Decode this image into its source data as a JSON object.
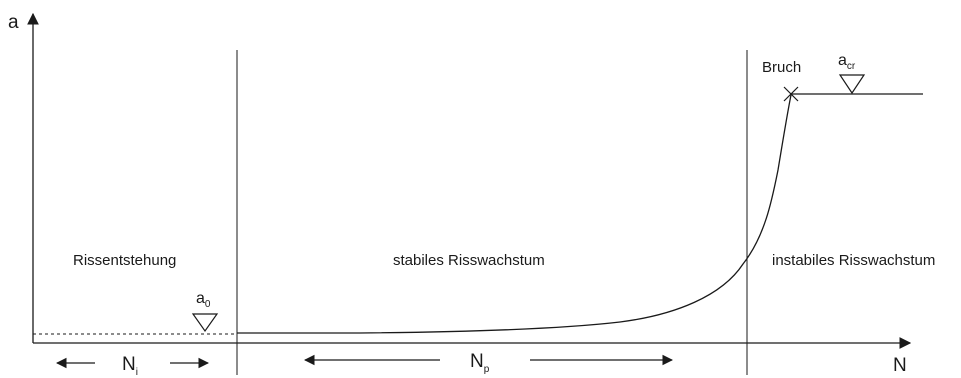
{
  "axes": {
    "y_label": "a",
    "x_label": "N"
  },
  "regions": {
    "initiation": "Rissentstehung",
    "stable": "stabiles Risswachstum",
    "unstable": "instabiles Risswachstum"
  },
  "markers": {
    "a0": {
      "base": "a",
      "sub": "0"
    },
    "acr": {
      "base": "a",
      "sub": "cr"
    },
    "fracture_label": "Bruch"
  },
  "spans": {
    "ni": {
      "base": "N",
      "sub": "i"
    },
    "np": {
      "base": "N",
      "sub": "p"
    }
  },
  "colors": {
    "ink": "#1a1a1a",
    "background": "#ffffff"
  }
}
